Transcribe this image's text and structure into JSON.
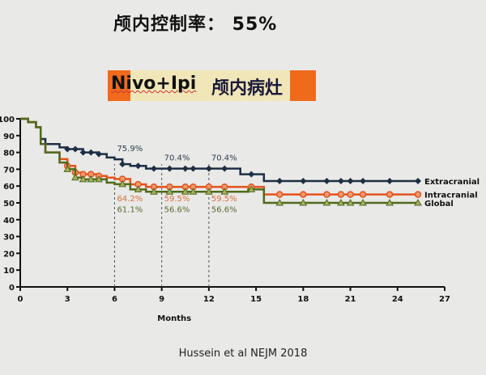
{
  "title": "颅内控制率： 55%",
  "banner": {
    "left": "Nivo+Ipi",
    "right": "颅内病灶",
    "accent": "#f06a1c"
  },
  "citation": "Hussein  et al NEJM 2018",
  "chart_data": {
    "type": "line",
    "xlabel": "Months",
    "ylabel": "",
    "xlim": [
      0,
      27
    ],
    "ylim": [
      0,
      100
    ],
    "xticks": [
      0,
      3,
      6,
      9,
      12,
      15,
      18,
      21,
      24,
      27
    ],
    "yticks": [
      0,
      10,
      20,
      30,
      40,
      50,
      60,
      70,
      80,
      90,
      100
    ],
    "series": [
      {
        "name": "Extracranial",
        "color": "#1d2f45",
        "marker": "diamond",
        "x": [
          0,
          0.5,
          1,
          1.3,
          1.6,
          2.5,
          3,
          4,
          5,
          5.5,
          6,
          6.5,
          7,
          8,
          14,
          15.5,
          25.3
        ],
        "y": [
          100,
          98,
          95,
          88,
          85,
          83,
          82,
          80,
          79,
          77,
          75.9,
          73,
          72,
          70.4,
          67,
          63,
          63
        ]
      },
      {
        "name": "Intracranial",
        "color": "#e2531e",
        "marker": "circle",
        "x": [
          0,
          0.5,
          1,
          1.3,
          1.6,
          2.5,
          3,
          3.5,
          4,
          5,
          5.5,
          6,
          7,
          8,
          15.5,
          25.3
        ],
        "y": [
          100,
          98,
          95,
          85,
          80,
          76,
          72,
          68,
          67,
          66,
          65,
          64.2,
          61,
          59.5,
          55,
          55
        ]
      },
      {
        "name": "Global",
        "color": "#4f6a1e",
        "marker": "triangle",
        "x": [
          0,
          0.5,
          1,
          1.3,
          1.6,
          2.5,
          3,
          3.5,
          4,
          5.5,
          6,
          7,
          8,
          14.5,
          15.5,
          25.3
        ],
        "y": [
          100,
          98,
          95,
          85,
          80,
          74,
          70,
          65,
          64,
          62,
          61.1,
          58,
          56.6,
          58,
          50,
          50
        ]
      }
    ],
    "annotations": [
      {
        "x": 6,
        "label": "75.9%",
        "series": "Extracranial"
      },
      {
        "x": 9,
        "label": "70.4%",
        "series": "Extracranial"
      },
      {
        "x": 12,
        "label": "70.4%",
        "series": "Extracranial"
      },
      {
        "x": 6,
        "label": "64.2%",
        "series": "Intracranial"
      },
      {
        "x": 9,
        "label": "59.5%",
        "series": "Intracranial"
      },
      {
        "x": 12,
        "label": "59.5%",
        "series": "Intracranial"
      },
      {
        "x": 6,
        "label": "61.1%",
        "series": "Global"
      },
      {
        "x": 9,
        "label": "56.6%",
        "series": "Global"
      },
      {
        "x": 12,
        "label": "56.6%",
        "series": "Global"
      }
    ],
    "legend": "right-end-of-lines"
  }
}
